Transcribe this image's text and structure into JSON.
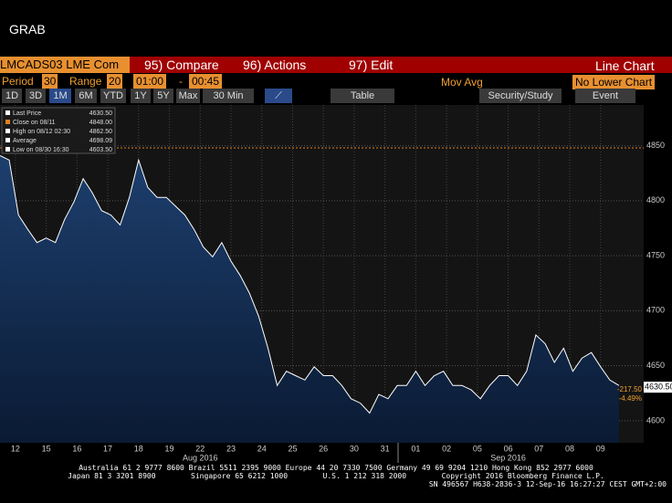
{
  "ui": {
    "window_title": "GRAB",
    "ticker": "LMCADS03 LME Com",
    "menu": [
      "95) Compare",
      "96) Actions",
      "97) Edit"
    ],
    "view": "Line Chart",
    "period_label": "Period",
    "period_value": "30",
    "range_label": "Range",
    "range_value": "20",
    "time_from": "01:00",
    "time_sep": "-",
    "time_to": "00:45",
    "mov_avg": "Mov Avg",
    "lower_chart": "No Lower Chart",
    "buttons": [
      "1D",
      "3D",
      "1M",
      "6M",
      "YTD",
      "1Y",
      "5Y",
      "Max",
      "30 Min"
    ],
    "table": "Table",
    "study": "Security/Study",
    "event": "Event",
    "legend": [
      {
        "label": "Last Price",
        "value": "4630.50"
      },
      {
        "label": "Close on 08/11",
        "value": "4848.00"
      },
      {
        "label": "High on 08/12 02:30",
        "value": "4862.50"
      },
      {
        "label": "Average",
        "value": "4698.09"
      },
      {
        "label": "Low on 08/30 16:30",
        "value": "4603.50"
      }
    ],
    "footer": [
      "Australia 61 2 9777 8600 Brazil 5511 2395 9000 Europe 44 20 7330 7500 Germany 49 69 9204 1210 Hong Kong 852 2977 6000",
      "Japan 81 3 3201 8900        Singapore 65 6212 1000        U.S. 1 212 318 2000        Copyright 2016 Bloomberg Finance L.P.",
      "SN 496567 H638-2836-3 12-Sep-16 16:27:27 CEST GMT+2:00"
    ]
  },
  "chart_data": {
    "type": "line",
    "series": [
      {
        "name": "Last Price",
        "color": "#ffffff",
        "x": [
          -0.5,
          -0.2,
          0.1,
          0.4,
          0.7,
          1,
          1.3,
          1.6,
          1.9,
          2.2,
          2.5,
          2.8,
          3.1,
          3.4,
          3.7,
          4,
          4.3,
          4.6,
          4.9,
          5.2,
          5.5,
          5.8,
          6.1,
          6.4,
          6.7,
          7,
          7.3,
          7.6,
          7.9,
          8.2,
          8.5,
          8.8,
          9.1,
          9.4,
          9.7,
          10,
          10.3,
          10.6,
          10.9,
          11.2,
          11.5,
          11.8,
          12.1,
          12.4,
          12.7,
          13,
          13.3,
          13.6,
          13.9,
          14.2,
          14.5,
          14.8,
          15.1,
          15.4,
          15.7,
          16,
          16.3,
          16.6,
          16.9,
          17.2,
          17.5,
          17.8,
          18.1,
          18.4,
          18.7,
          19,
          19.3,
          19.6
        ],
        "values": [
          4841,
          4837,
          4787,
          4774,
          4762,
          4766,
          4762,
          4783,
          4799,
          4820,
          4807,
          4791,
          4787,
          4778,
          4803,
          4837,
          4812,
          4803,
          4803,
          4795,
          4787,
          4774,
          4758,
          4749,
          4762,
          4745,
          4732,
          4716,
          4695,
          4666,
          4632,
          4645,
          4641,
          4637,
          4649,
          4641,
          4641,
          4632,
          4620,
          4616,
          4607,
          4624,
          4620,
          4632,
          4632,
          4645,
          4632,
          4641,
          4645,
          4632,
          4632,
          4628,
          4620,
          4632,
          4641,
          4641,
          4632,
          4645,
          4678,
          4670,
          4653,
          4666,
          4645,
          4657,
          4662,
          4649,
          4637,
          4632
        ]
      }
    ],
    "close_line": 4848,
    "close_line_color": "#e08020",
    "last_label": {
      "value": 4630.5,
      "label": "4630.50"
    },
    "change_labels": [
      "-217.50",
      "-4.49%"
    ],
    "xlim": [
      -0.5,
      20.4
    ],
    "xticks": [
      {
        "value": 0,
        "label": "12"
      },
      {
        "value": 1,
        "label": "15"
      },
      {
        "value": 2,
        "label": "16"
      },
      {
        "value": 3,
        "label": "17"
      },
      {
        "value": 4,
        "label": "18"
      },
      {
        "value": 5,
        "label": "19"
      },
      {
        "value": 6,
        "label": "22"
      },
      {
        "value": 7,
        "label": "23"
      },
      {
        "value": 8,
        "label": "24"
      },
      {
        "value": 9,
        "label": "25"
      },
      {
        "value": 10,
        "label": "26"
      },
      {
        "value": 11,
        "label": "30"
      },
      {
        "value": 12,
        "label": "31"
      },
      {
        "value": 13,
        "label": "01"
      },
      {
        "value": 14,
        "label": "02"
      },
      {
        "value": 15,
        "label": "05"
      },
      {
        "value": 16,
        "label": "06"
      },
      {
        "value": 17,
        "label": "07"
      },
      {
        "value": 18,
        "label": "08"
      },
      {
        "value": 19,
        "label": "09"
      }
    ],
    "month_labels": [
      {
        "value": 6,
        "label": "Aug 2016"
      },
      {
        "value": 16,
        "label": "Sep 2016"
      }
    ],
    "ylim": [
      4580,
      4887
    ],
    "yticks": [
      4600,
      4650,
      4700,
      4750,
      4800,
      4850
    ],
    "grid": true
  }
}
